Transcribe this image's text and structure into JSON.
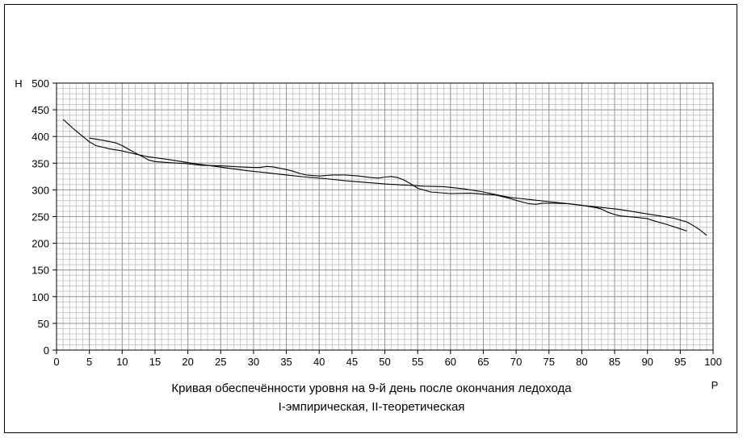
{
  "chart_data": {
    "type": "line",
    "title": "Кривая обеспечённости уровня на 9-й день после окончания ледохода",
    "subtitle": "I-эмпирическая, II-теоретическая",
    "xlabel": "P",
    "ylabel": "Н",
    "xlim": [
      0,
      100
    ],
    "ylim": [
      0,
      500
    ],
    "x_ticks": [
      0,
      5,
      10,
      15,
      20,
      25,
      30,
      35,
      40,
      45,
      50,
      55,
      60,
      65,
      70,
      75,
      80,
      85,
      90,
      95,
      100
    ],
    "y_ticks": [
      0,
      50,
      100,
      150,
      200,
      250,
      300,
      350,
      400,
      450,
      500
    ],
    "x_tick_labels": [
      "0",
      "5",
      "10",
      "15",
      "20",
      "25",
      "30",
      "35",
      "40",
      "45",
      "50",
      "55",
      "60",
      "65",
      "70",
      "75",
      "80",
      "85",
      "90",
      "95",
      "100"
    ],
    "y_tick_labels": [
      "0",
      "50",
      "100",
      "150",
      "200",
      "250",
      "300",
      "350",
      "400",
      "450",
      "500"
    ],
    "grid": true,
    "minor_grid_x_step": 1,
    "minor_grid_y_step": 10,
    "legend": "none",
    "series": [
      {
        "values": [
          [
            5,
            397
          ],
          [
            7,
            393
          ],
          [
            9,
            388
          ],
          [
            10,
            383
          ],
          [
            11,
            376
          ],
          [
            12,
            369
          ],
          [
            13,
            363
          ],
          [
            14,
            356
          ],
          [
            15,
            353
          ],
          [
            17,
            351
          ],
          [
            20,
            349
          ],
          [
            22,
            346
          ],
          [
            25,
            345
          ],
          [
            28,
            343
          ],
          [
            30,
            342
          ],
          [
            31,
            342
          ],
          [
            32,
            344
          ],
          [
            33,
            343
          ],
          [
            35,
            338
          ],
          [
            36,
            335
          ],
          [
            37,
            331
          ],
          [
            38,
            328
          ],
          [
            40,
            326
          ],
          [
            42,
            328
          ],
          [
            44,
            328
          ],
          [
            46,
            326
          ],
          [
            48,
            323
          ],
          [
            49,
            322
          ],
          [
            50,
            324
          ],
          [
            51,
            325
          ],
          [
            52,
            323
          ],
          [
            53,
            318
          ],
          [
            54,
            311
          ],
          [
            55,
            303
          ],
          [
            57,
            296
          ],
          [
            60,
            293
          ],
          [
            63,
            294
          ],
          [
            65,
            292
          ],
          [
            67,
            290
          ],
          [
            69,
            284
          ],
          [
            71,
            277
          ],
          [
            72,
            274
          ],
          [
            73,
            273
          ],
          [
            74,
            275
          ],
          [
            76,
            275
          ],
          [
            78,
            274
          ],
          [
            80,
            271
          ],
          [
            82,
            267
          ],
          [
            83,
            264
          ],
          [
            84,
            258
          ],
          [
            85,
            254
          ],
          [
            86,
            251
          ],
          [
            88,
            249
          ],
          [
            90,
            246
          ],
          [
            91,
            242
          ],
          [
            93,
            235
          ],
          [
            95,
            227
          ],
          [
            96,
            223
          ]
        ],
        "color": "#000000"
      },
      {
        "values": [
          [
            1,
            432
          ],
          [
            3,
            410
          ],
          [
            5,
            390
          ],
          [
            6,
            383
          ],
          [
            8,
            377
          ],
          [
            10,
            373
          ],
          [
            12,
            367
          ],
          [
            14,
            362
          ],
          [
            17,
            357
          ],
          [
            20,
            351
          ],
          [
            23,
            346
          ],
          [
            26,
            341
          ],
          [
            29,
            336
          ],
          [
            32,
            332
          ],
          [
            35,
            328
          ],
          [
            38,
            324
          ],
          [
            41,
            321
          ],
          [
            44,
            317
          ],
          [
            47,
            314
          ],
          [
            50,
            311
          ],
          [
            53,
            309
          ],
          [
            56,
            307
          ],
          [
            59,
            306
          ],
          [
            62,
            302
          ],
          [
            65,
            296
          ],
          [
            67,
            291
          ],
          [
            69,
            286
          ],
          [
            72,
            282
          ],
          [
            75,
            278
          ],
          [
            78,
            274
          ],
          [
            80,
            271
          ],
          [
            83,
            267
          ],
          [
            86,
            263
          ],
          [
            89,
            257
          ],
          [
            92,
            251
          ],
          [
            94,
            247
          ],
          [
            96,
            240
          ],
          [
            97,
            233
          ],
          [
            98,
            225
          ],
          [
            99,
            215
          ]
        ],
        "color": "#000000"
      }
    ]
  }
}
